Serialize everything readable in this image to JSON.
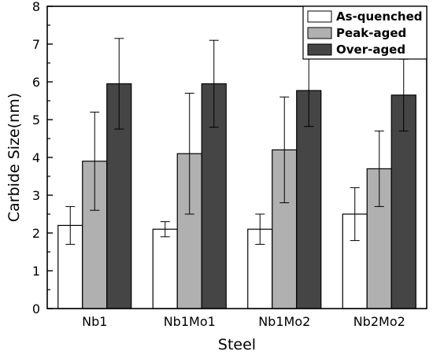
{
  "chart_data": {
    "type": "bar",
    "title": "",
    "xlabel": "Steel",
    "ylabel": "Carbide Size(nm)",
    "categories": [
      "Nb1",
      "Nb1Mo1",
      "Nb1Mo2",
      "Nb2Mo2"
    ],
    "ylim": [
      0,
      8
    ],
    "yticks": [
      "0",
      "1",
      "2",
      "3",
      "4",
      "5",
      "6",
      "7",
      "8"
    ],
    "legend_position": "top-right",
    "grid": false,
    "series": [
      {
        "name": "As-quenched",
        "color": "#ffffff",
        "values": [
          2.2,
          2.1,
          2.1,
          2.5
        ],
        "errors": [
          0.5,
          0.2,
          0.4,
          0.7
        ]
      },
      {
        "name": "Peak-aged",
        "color": "#b0b0b0",
        "values": [
          3.9,
          4.1,
          4.2,
          3.7
        ],
        "errors": [
          1.3,
          1.6,
          1.4,
          1.0
        ]
      },
      {
        "name": "Over-aged",
        "color": "#454545",
        "values": [
          5.95,
          5.95,
          5.77,
          5.65
        ],
        "errors": [
          1.2,
          1.15,
          0.95,
          0.95
        ]
      }
    ]
  }
}
